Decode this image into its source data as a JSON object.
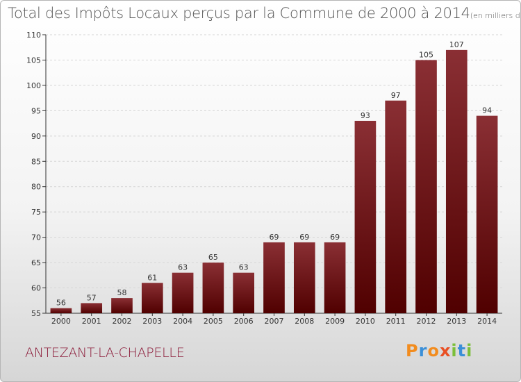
{
  "title": "Total des Impôts Locaux perçus par la Commune de 2000 à 2014",
  "unit": "(en milliers d'€)",
  "commune": "ANTEZANT-LA-CHAPELLE",
  "brand": {
    "letters": [
      "P",
      "r",
      "o",
      "x",
      "i",
      "t",
      "i"
    ],
    "colors": [
      "#f28c1e",
      "#3a8fd8",
      "#f28c1e",
      "#e94f23",
      "#7bbf3a",
      "#3a8fd8",
      "#7bbf3a"
    ]
  },
  "colors": {
    "bar_top": "#8a2f34",
    "bar_bottom": "#500000",
    "grid": "#d5d5d5"
  },
  "chart_data": {
    "type": "bar",
    "title": "Total des Impôts Locaux perçus par la Commune de 2000 à 2014",
    "xlabel": "",
    "ylabel": "",
    "categories": [
      "2000",
      "2001",
      "2002",
      "2003",
      "2004",
      "2005",
      "2006",
      "2007",
      "2008",
      "2009",
      "2010",
      "2011",
      "2012",
      "2013",
      "2014"
    ],
    "values": [
      56,
      57,
      58,
      61,
      63,
      65,
      63,
      69,
      69,
      69,
      93,
      97,
      105,
      107,
      94
    ],
    "ylim": [
      55,
      110
    ],
    "yticks": [
      55,
      60,
      65,
      70,
      75,
      80,
      85,
      90,
      95,
      100,
      105,
      110
    ],
    "grid": true
  }
}
